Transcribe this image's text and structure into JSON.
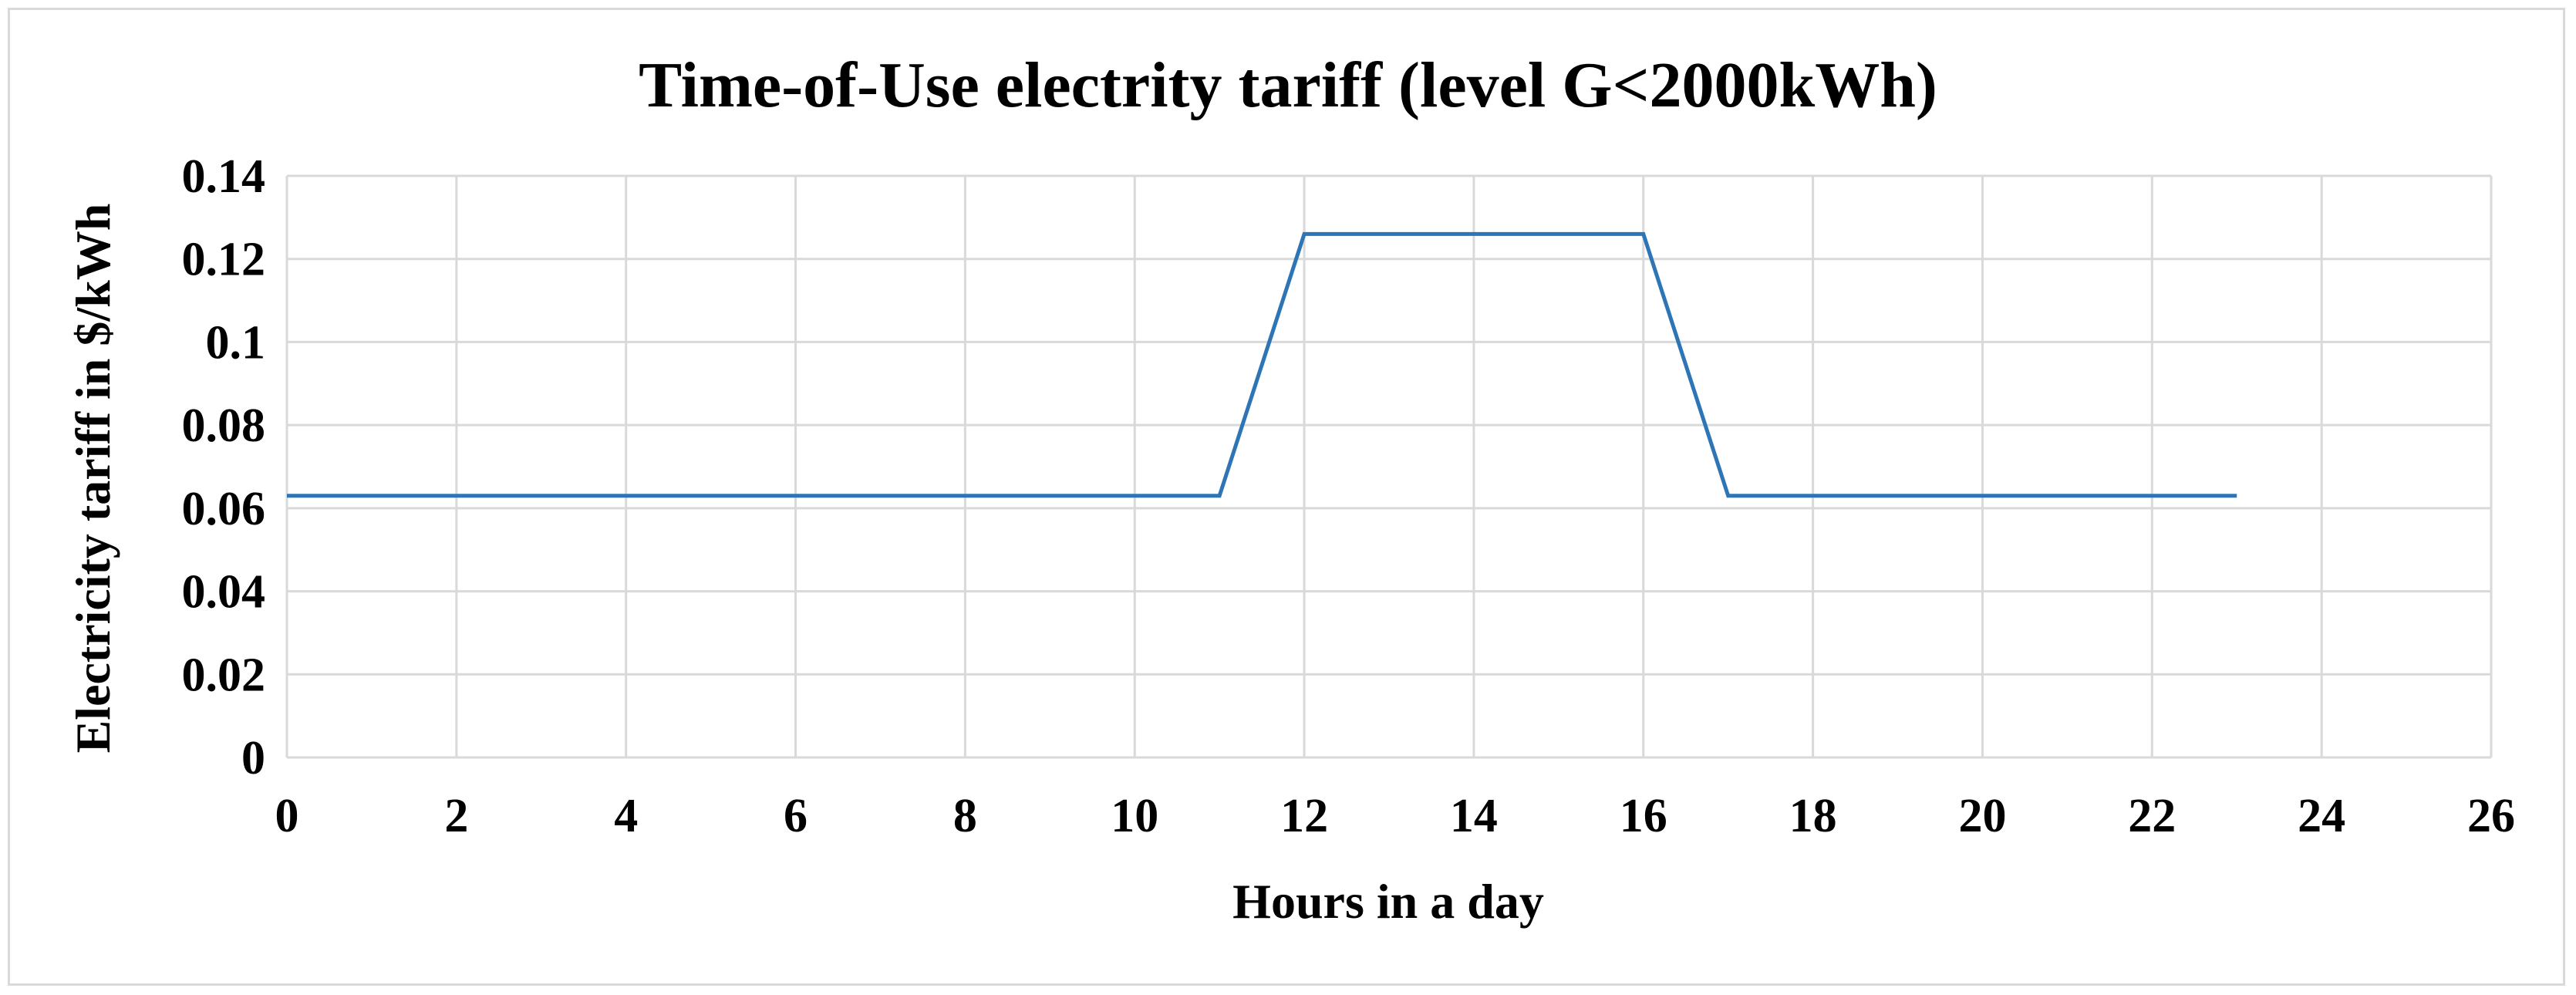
{
  "chart_data": {
    "type": "line",
    "title": "Time-of-Use electrity tariff (level G<2000kWh)",
    "xlabel": "Hours in a day",
    "ylabel": "Electricity tariff in $/kWh",
    "xlim": [
      0,
      26
    ],
    "ylim": [
      0,
      0.14
    ],
    "x_ticks": [
      "0",
      "2",
      "4",
      "6",
      "8",
      "10",
      "12",
      "14",
      "16",
      "18",
      "20",
      "22",
      "24",
      "26"
    ],
    "y_ticks": [
      "0",
      "0.02",
      "0.04",
      "0.06",
      "0.08",
      "0.1",
      "0.12",
      "0.14"
    ],
    "grid": true,
    "legend": "none",
    "series": [
      {
        "color": "#2e75b6",
        "x": [
          0,
          11,
          12,
          16,
          17,
          23
        ],
        "y": [
          0.063,
          0.063,
          0.126,
          0.126,
          0.063,
          0.063
        ]
      }
    ]
  }
}
